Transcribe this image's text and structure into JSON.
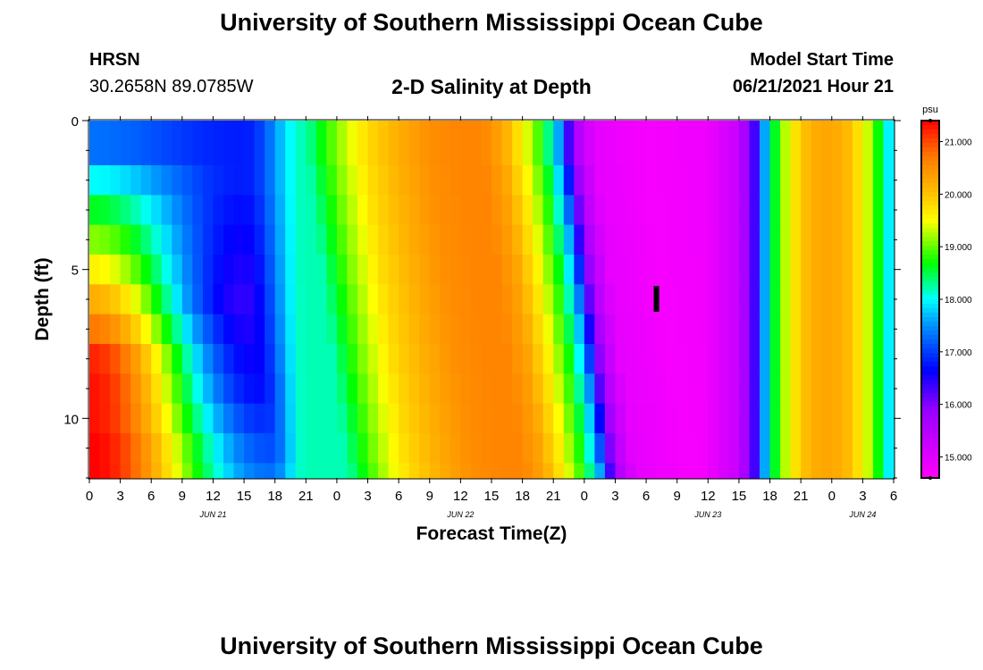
{
  "header": {
    "title_top": "University of Southern Mississippi Ocean Cube",
    "title_bottom": "University of Southern Mississippi Ocean Cube",
    "station": "HRSN",
    "coords": "30.2658N  89.0785W",
    "plot_title": "2-D Salinity at Depth",
    "model_start_label": "Model Start Time",
    "model_start_value": "06/21/2021 Hour 21"
  },
  "chart_data": {
    "type": "heatmap",
    "title": "2-D Salinity at Depth",
    "xlabel": "Forecast Time(Z)",
    "ylabel": "Depth (ft)",
    "x_hours_range": [
      0,
      78
    ],
    "x_tick_labels": [
      "0",
      "3",
      "6",
      "9",
      "12",
      "15",
      "18",
      "21",
      "0",
      "3",
      "6",
      "9",
      "12",
      "15",
      "18",
      "21",
      "0",
      "3",
      "6",
      "9",
      "12",
      "15",
      "18",
      "21",
      "0",
      "3",
      "6"
    ],
    "date_labels": [
      {
        "label": "JUN 21",
        "hour": 12
      },
      {
        "label": "JUN 22",
        "hour": 36
      },
      {
        "label": "JUN 23",
        "hour": 60
      },
      {
        "label": "JUN 24",
        "hour": 75
      }
    ],
    "y_ticks": [
      0,
      5,
      10
    ],
    "ylim": [
      0,
      12
    ],
    "colorbar": {
      "unit": "psu",
      "range": [
        14.6,
        21.4
      ],
      "ticks": [
        "15.000",
        "16.000",
        "17.000",
        "18.000",
        "19.000",
        "20.000",
        "21.000"
      ],
      "tick_values": [
        15,
        16,
        17,
        18,
        19,
        20,
        21
      ]
    },
    "depth_profile": {
      "depths_ft": [
        0,
        1.5,
        2.5,
        3.5,
        4.5,
        5.5,
        6.5,
        7.5,
        8.5,
        9.5,
        10.5,
        11.5
      ],
      "hour0_psu": [
        17.3,
        18.0,
        18.6,
        19.1,
        19.6,
        20.2,
        20.7,
        21.2,
        21.3,
        21.3,
        21.4,
        21.4
      ],
      "min_hour": [
        15,
        15,
        15,
        15,
        15,
        15,
        15.5,
        16,
        16.5,
        17,
        17.5,
        17.5
      ],
      "min_psu": [
        16.8,
        16.8,
        16.7,
        16.6,
        16.5,
        16.4,
        16.5,
        16.6,
        16.7,
        16.9,
        17.1,
        17.3
      ]
    },
    "time_series_psu": [
      {
        "hour": 21,
        "psu": 18.2
      },
      {
        "hour": 24,
        "psu": 19.1
      },
      {
        "hour": 27,
        "psu": 19.8
      },
      {
        "hour": 30,
        "psu": 20.2
      },
      {
        "hour": 33,
        "psu": 20.5
      },
      {
        "hour": 36,
        "psu": 20.6
      },
      {
        "hour": 38,
        "psu": 20.6
      },
      {
        "hour": 40,
        "psu": 20.3
      },
      {
        "hour": 42,
        "psu": 19.6
      },
      {
        "hour": 44,
        "psu": 18.7
      },
      {
        "hour": 45.5,
        "psu": 17.6
      },
      {
        "hour": 46.5,
        "psu": 16.3
      },
      {
        "hour": 47.5,
        "psu": 15.5
      },
      {
        "hour": 49,
        "psu": 14.9
      },
      {
        "hour": 54,
        "psu": 14.7
      },
      {
        "hour": 60,
        "psu": 14.8
      },
      {
        "hour": 63,
        "psu": 15.3
      },
      {
        "hour": 64.5,
        "psu": 16.3
      },
      {
        "hour": 65.5,
        "psu": 17.6
      },
      {
        "hour": 66.5,
        "psu": 18.6
      },
      {
        "hour": 68,
        "psu": 19.6
      },
      {
        "hour": 70,
        "psu": 20.2
      },
      {
        "hour": 72,
        "psu": 20.3
      },
      {
        "hour": 74,
        "psu": 20.0
      },
      {
        "hour": 76,
        "psu": 19.1
      },
      {
        "hour": 77,
        "psu": 18.3
      },
      {
        "hour": 78,
        "psu": 17.6
      }
    ],
    "slow_layer_lag_hours": 4,
    "marker": {
      "label": "I",
      "hour": 55,
      "depth": 6
    }
  }
}
